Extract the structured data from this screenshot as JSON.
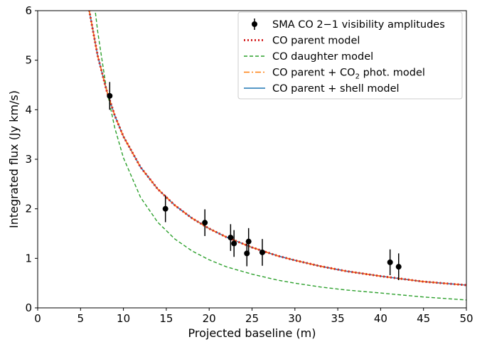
{
  "chart_data": {
    "type": "scatter",
    "xlabel": "Projected baseline (m)",
    "ylabel": "Integrated flux (Jy km/s)",
    "xlim": [
      0,
      50
    ],
    "ylim": [
      0,
      6
    ],
    "xticks": [
      "0",
      "5",
      "10",
      "15",
      "20",
      "25",
      "30",
      "35",
      "40",
      "45",
      "50"
    ],
    "yticks": [
      "0",
      "1",
      "2",
      "3",
      "4",
      "5",
      "6"
    ],
    "grid": false,
    "legend_position": "top-right",
    "observations": {
      "name": "SMA CO 2−1 visibility amplitudes",
      "x": [
        8.4,
        14.9,
        19.5,
        22.5,
        22.9,
        24.4,
        24.6,
        26.2,
        41.1,
        42.1
      ],
      "y": [
        4.28,
        2.0,
        1.72,
        1.42,
        1.3,
        1.1,
        1.34,
        1.12,
        0.92,
        0.83
      ],
      "yerr": [
        0.28,
        0.27,
        0.27,
        0.27,
        0.27,
        0.26,
        0.27,
        0.27,
        0.26,
        0.27
      ]
    },
    "series": [
      {
        "name": "CO parent model",
        "style": "dotted",
        "color": "#d62728",
        "x": [
          6,
          7,
          8,
          9,
          10,
          12,
          14,
          16,
          18,
          20,
          22,
          25,
          28,
          30,
          33,
          36,
          40,
          45,
          50
        ],
        "y": [
          6.01,
          5.09,
          4.41,
          3.88,
          3.46,
          2.84,
          2.4,
          2.07,
          1.81,
          1.6,
          1.43,
          1.22,
          1.05,
          0.96,
          0.84,
          0.74,
          0.64,
          0.53,
          0.46
        ]
      },
      {
        "name": "CO daughter model",
        "style": "dashed",
        "color": "#2ca02c",
        "x": [
          6.5,
          7,
          8,
          9,
          10,
          12,
          14,
          16,
          18,
          20,
          22,
          25,
          28,
          30,
          33,
          36,
          40,
          45,
          50
        ],
        "y": [
          6.3,
          5.58,
          4.44,
          3.63,
          3.03,
          2.23,
          1.73,
          1.39,
          1.15,
          0.97,
          0.83,
          0.68,
          0.56,
          0.5,
          0.42,
          0.36,
          0.3,
          0.22,
          0.16
        ]
      },
      {
        "name": "CO parent + CO₂ phot. model",
        "label_main": "CO parent + CO",
        "label_sub": "2",
        "label_rest": " phot. model",
        "style": "dashdot",
        "color": "#ff7f0e",
        "x": [
          6,
          7,
          8,
          9,
          10,
          12,
          14,
          16,
          18,
          20,
          22,
          25,
          28,
          30,
          33,
          36,
          40,
          45,
          50
        ],
        "y": [
          6.01,
          5.09,
          4.41,
          3.88,
          3.46,
          2.84,
          2.4,
          2.07,
          1.81,
          1.6,
          1.43,
          1.22,
          1.05,
          0.96,
          0.84,
          0.74,
          0.64,
          0.53,
          0.46
        ]
      },
      {
        "name": "CO parent + shell model",
        "style": "solid",
        "color": "#1f77b4",
        "x": [
          6,
          7,
          8,
          9,
          10,
          12,
          14,
          16,
          18,
          20,
          22,
          25,
          28,
          30,
          33,
          36,
          40,
          45,
          50
        ],
        "y": [
          6.01,
          5.09,
          4.41,
          3.88,
          3.46,
          2.84,
          2.4,
          2.07,
          1.81,
          1.6,
          1.43,
          1.22,
          1.05,
          0.96,
          0.84,
          0.74,
          0.64,
          0.53,
          0.46
        ]
      }
    ]
  }
}
